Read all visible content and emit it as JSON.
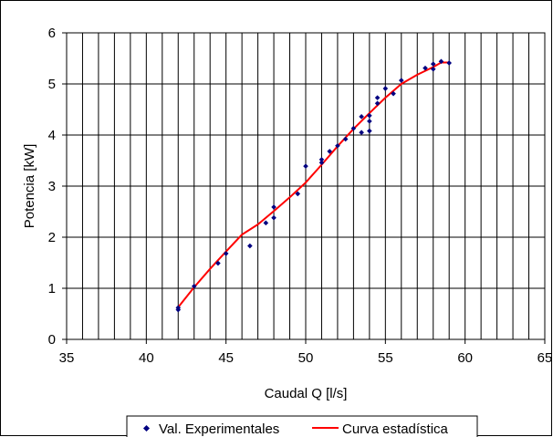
{
  "chart_data": {
    "type": "scatter",
    "xlabel": "Caudal Q [l/s]",
    "ylabel": "Potencia [kW]",
    "xlim": [
      35,
      65
    ],
    "ylim": [
      0,
      6
    ],
    "xticks": [
      35,
      40,
      45,
      50,
      55,
      60,
      65
    ],
    "yticks": [
      0,
      1,
      2,
      3,
      4,
      5,
      6
    ],
    "x_minor_step": 1,
    "grid": true,
    "legend_placement": "bottom",
    "series": [
      {
        "name": "Val. Experimentales",
        "kind": "scatter",
        "marker": "diamond",
        "color": "#000080",
        "points": [
          [
            42.0,
            0.58
          ],
          [
            42.0,
            0.62
          ],
          [
            43.0,
            1.04
          ],
          [
            44.5,
            1.49
          ],
          [
            45.0,
            1.68
          ],
          [
            46.5,
            1.83
          ],
          [
            47.5,
            2.28
          ],
          [
            48.0,
            2.38
          ],
          [
            48.0,
            2.59
          ],
          [
            49.5,
            2.85
          ],
          [
            50.0,
            3.39
          ],
          [
            51.0,
            3.46
          ],
          [
            51.0,
            3.52
          ],
          [
            51.5,
            3.68
          ],
          [
            52.0,
            3.79
          ],
          [
            52.5,
            3.92
          ],
          [
            53.0,
            4.13
          ],
          [
            53.5,
            4.05
          ],
          [
            53.5,
            4.36
          ],
          [
            54.0,
            4.08
          ],
          [
            54.0,
            4.27
          ],
          [
            54.0,
            4.38
          ],
          [
            54.5,
            4.62
          ],
          [
            54.5,
            4.73
          ],
          [
            55.0,
            4.91
          ],
          [
            55.5,
            4.81
          ],
          [
            56.0,
            5.07
          ],
          [
            57.5,
            5.31
          ],
          [
            58.0,
            5.29
          ],
          [
            58.0,
            5.39
          ],
          [
            58.5,
            5.44
          ],
          [
            59.0,
            5.41
          ]
        ]
      },
      {
        "name": "Curva estadística",
        "kind": "line",
        "color": "#ff0000",
        "points": [
          [
            42.0,
            0.63
          ],
          [
            43.0,
            1.02
          ],
          [
            44.0,
            1.38
          ],
          [
            45.0,
            1.72
          ],
          [
            46.0,
            2.05
          ],
          [
            47.0,
            2.25
          ],
          [
            48.0,
            2.51
          ],
          [
            49.0,
            2.78
          ],
          [
            50.0,
            3.07
          ],
          [
            51.0,
            3.42
          ],
          [
            52.0,
            3.78
          ],
          [
            53.0,
            4.12
          ],
          [
            54.0,
            4.43
          ],
          [
            55.0,
            4.73
          ],
          [
            56.0,
            5.0
          ],
          [
            57.0,
            5.18
          ],
          [
            58.0,
            5.33
          ],
          [
            58.5,
            5.42
          ],
          [
            59.0,
            5.42
          ]
        ]
      }
    ]
  }
}
